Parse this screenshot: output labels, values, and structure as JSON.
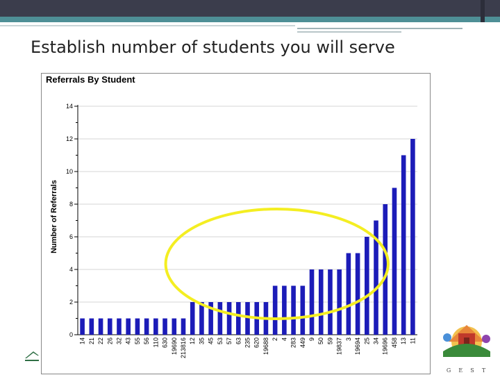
{
  "slide": {
    "title": "Establish number of students you will serve"
  },
  "colors": {
    "bar": "#1c1cb8",
    "highlight": "#f4ee22",
    "topbar": "#3b3d4c",
    "accent": "#4e8f96"
  },
  "logo_right": {
    "letters": "G  E  S  T"
  },
  "chart_data": {
    "type": "bar",
    "title": "Referrals By Student",
    "xlabel": "",
    "ylabel": "Number of Referrals",
    "ylim": [
      0,
      14
    ],
    "yticks": [
      0,
      2,
      4,
      6,
      8,
      10,
      12,
      14
    ],
    "grid": true,
    "legend": "none",
    "categories": [
      "14",
      "21",
      "22",
      "26",
      "32",
      "43",
      "55",
      "56",
      "110",
      "630",
      "19690",
      "213816",
      "12",
      "35",
      "45",
      "53",
      "57",
      "63",
      "235",
      "620",
      "19688",
      "2",
      "4",
      "283",
      "449",
      "9",
      "50",
      "59",
      "19837",
      "3",
      "19694",
      "25",
      "34",
      "19696",
      "458",
      "13",
      "11"
    ],
    "values": [
      1,
      1,
      1,
      1,
      1,
      1,
      1,
      1,
      1,
      1,
      1,
      1,
      2,
      2,
      2,
      2,
      2,
      2,
      2,
      2,
      2,
      3,
      3,
      3,
      3,
      4,
      4,
      4,
      4,
      5,
      5,
      6,
      7,
      8,
      9,
      11,
      12
    ],
    "annotations": [
      {
        "type": "ellipse",
        "label": "",
        "range_categories": [
          "12",
          "25"
        ]
      }
    ]
  }
}
